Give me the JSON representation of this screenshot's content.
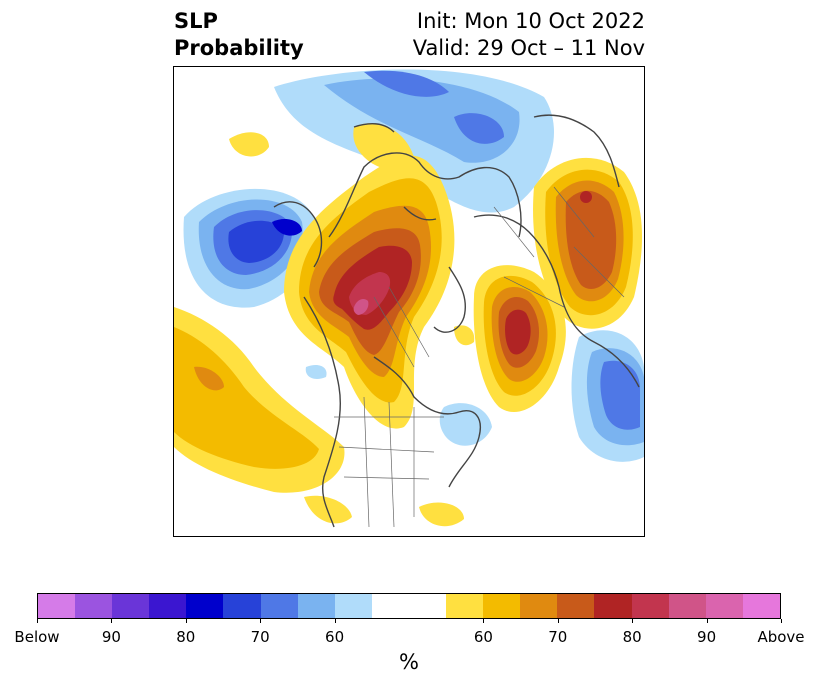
{
  "title": {
    "left_line1": "SLP",
    "left_line2": "Probability",
    "right_line1": "Init: Mon 10 Oct 2022",
    "right_line2": "Valid: 29 Oct – 11 Nov"
  },
  "colorbar": {
    "colors": [
      "#d57be8",
      "#9b54e0",
      "#6a35d8",
      "#3b16d0",
      "#0000cc",
      "#2742d8",
      "#4f78e6",
      "#7ab3f0",
      "#b0dcfa",
      "#ffffff",
      "#ffffff",
      "#ffe040",
      "#f3bb00",
      "#e08a10",
      "#c85a1a",
      "#b02424",
      "#c2354e",
      "#d05488",
      "#da64ae",
      "#e677dc"
    ],
    "tick_labels": [
      "Below",
      "90",
      "80",
      "70",
      "60",
      "60",
      "70",
      "80",
      "90",
      "Above"
    ],
    "unit": "%"
  },
  "map": {
    "region": "Northern Hemisphere polar stereographic",
    "anomaly_features": [
      {
        "name": "Above-normal SLP over Alaska / Yukon",
        "max_pct": 90
      },
      {
        "name": "Above-normal SLP over Scandinavia / N. Atlantic",
        "max_pct": 80
      },
      {
        "name": "Above-normal SLP over Siberia",
        "max_pct": 80
      },
      {
        "name": "Below-normal SLP over North Pacific",
        "max_pct": 80
      },
      {
        "name": "Below-normal SLP over Arctic / Greenland",
        "max_pct": 70
      },
      {
        "name": "Below-normal SLP over central Asia",
        "max_pct": 70
      }
    ]
  }
}
